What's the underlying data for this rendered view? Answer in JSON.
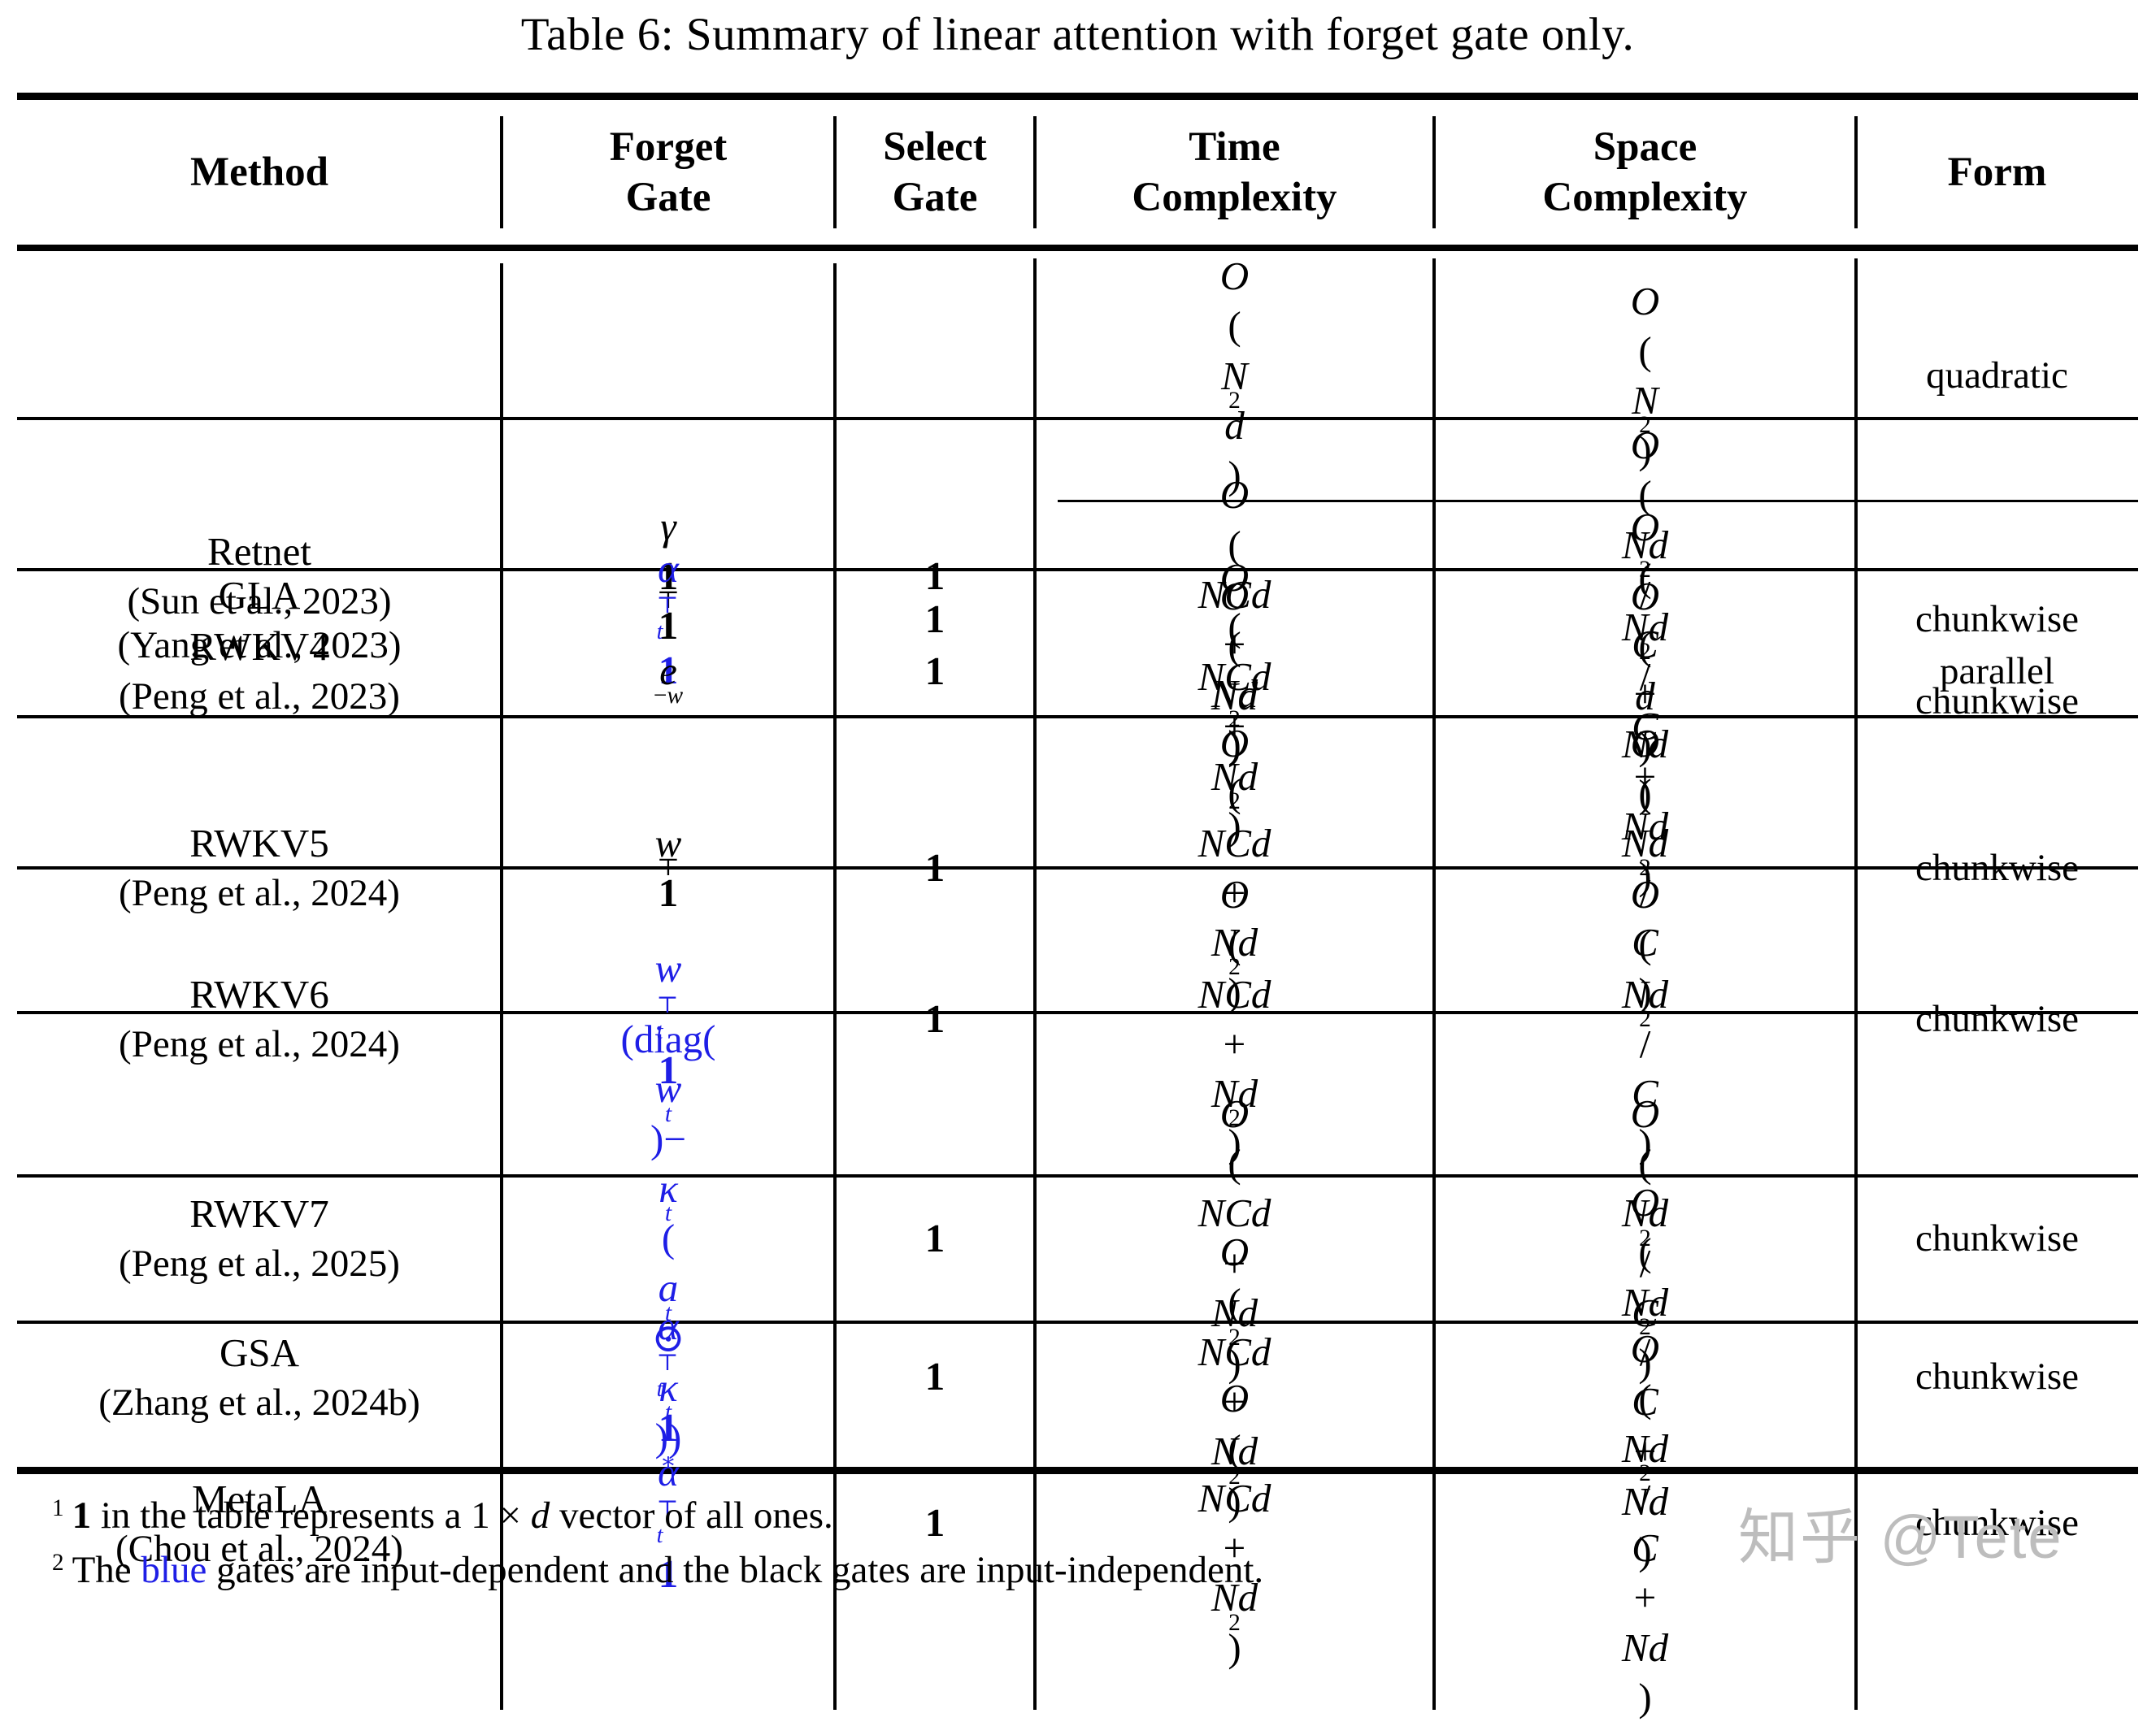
{
  "title": "Table 6: Summary of linear attention with forget gate only.",
  "header": {
    "method": "Method",
    "forget_l1": "Forget",
    "forget_l2": "Gate",
    "select_l1": "Select",
    "select_l2": "Gate",
    "time_l1": "Time",
    "time_l2": "Complexity",
    "space_l1": "Space",
    "space_l2": "Complexity",
    "form": "Form"
  },
  "rows": [
    {
      "name": "Retnet",
      "cite": "(Sun et al., 2023)",
      "gate": "<i>γ</i><b>1</b><sup>⊤</sup><b>1</b>",
      "gate_blue": false,
      "select": "<b>1</b>",
      "sub": [
        {
          "time": "<i>O</i>(<i>N</i><sup>2</sup><i>d</i>)",
          "space": "<i>O</i>(<i>N</i><sup>2</sup>)",
          "form": "quadratic"
        },
        {
          "time": "<i>O</i>(<i>NCd</i> + <i>Nd</i><sup>2</sup>)",
          "space": "<i>O</i>(<i>Nd</i><sup>2</sup>/<i>C</i> + <i>Nd</i>)",
          "form": "chunkwise"
        }
      ]
    },
    {
      "name": "GLA",
      "cite": "(Yang et al., 2023)",
      "gate": "<i>α</i><span class=\"ss\"><span>⊤</span><span><i>t</i></span></span><b>1</b>",
      "gate_blue": true,
      "select": "<b>1</b>",
      "time": "<i>O</i>(<i>NCd</i> + <i>Nd</i><sup>2</sup>)",
      "space": "<i>O</i>(<i>Nd</i><sup>2</sup>/<i>C</i> + <i>Nd</i>)",
      "form": "chunkwise"
    },
    {
      "name": "RWKV4",
      "cite": "(Peng et al., 2023)",
      "gate": "<i>e</i><sup>−<i>w</i></sup>",
      "gate_blue": false,
      "select": "<b>1</b>",
      "time": "<i>O</i>(<i>Nd</i>)",
      "space": "<i>O</i>(<i>d</i>)",
      "form": "parallel"
    },
    {
      "name": "RWKV5",
      "cite": "(Peng et al., 2024)",
      "gate": "<i>w</i><sup>⊤</sup><b>1</b>",
      "gate_blue": false,
      "select": "<b>1</b>",
      "time": "<i>O</i>(<i>NCd</i> + <i>Nd</i><sup>2</sup>)",
      "space": "<i>O</i>(<i>Nd</i><sup>2</sup>/<i>C</i>)",
      "form": "chunkwise"
    },
    {
      "name": "RWKV6",
      "cite": "(Peng et al., 2024)",
      "gate": "<i>w</i><span class=\"ss\"><span>⊤</span><span><i>t</i></span></span><b>1</b>",
      "gate_blue": true,
      "select": "<b>1</b>",
      "time": "<i>O</i>(<i>NCd</i> + <i>Nd</i><sup>2</sup>)",
      "space": "<i>O</i>(<i>Nd</i><sup>2</sup>/<i>C</i>)",
      "form": "chunkwise"
    },
    {
      "name": "RWKV7",
      "cite": "(Peng et al., 2025)",
      "gate": "(diag(<i>w</i><sub><i>t</i></sub>)−<br><i>κ</i><sub><i>t</i></sub>(<i>a</i><sub><i>t</i></sub> ⊙ <i>κ</i><sub><i>t</i></sub>))<sup>∗</sup>",
      "gate_blue": true,
      "select": "<b>1</b>",
      "time": "<i>O</i>(<i>NCd</i> + <i>Nd</i><sup>2</sup>)",
      "space": "<i>O</i>(<i>Nd</i><sup>2</sup>/<i>C</i>)",
      "form": "chunkwise"
    },
    {
      "name": "GSA",
      "cite": "(Zhang et al., 2024b)",
      "gate": "<i>α</i><span class=\"ss\"><span>⊤</span><span><i>t</i></span></span><b>1</b>",
      "gate_blue": true,
      "select": "<b>1</b>",
      "time": "<i>O</i>(<i>NCd</i> + <i>Nd</i><sup>2</sup>)",
      "space": "<i>O</i>(<i>Nd</i><sup>2</sup>/<i>C</i> + <i>Nd</i>)",
      "form": "chunkwise"
    },
    {
      "name": "MetaLA",
      "cite": "(Chou et al., 2024)",
      "gate": "<i>α</i><span class=\"ss\"><span>⊤</span><span><i>t</i></span></span><b>1</b>",
      "gate_blue": true,
      "select": "<b>1</b>",
      "time": "<i>O</i>(<i>NCd</i> + <i>Nd</i><sup>2</sup>)",
      "space": "<i>O</i>(<i>Nd</i><sup>2</sup>/<i>C</i> + <i>Nd</i>)",
      "form": "chunkwise"
    }
  ],
  "footnotes": [
    {
      "marker": "1",
      "html": "<b>1</b> in the table represents a 1 × <i>d</i> vector of all ones."
    },
    {
      "marker": "2",
      "html": "The <span class=\"blue\">blue</span> gates are input-dependent and the black gates are input-independent."
    }
  ],
  "watermark": {
    "text": "知乎 @Tete"
  },
  "colors": {
    "gate_blue": "#1e1ee6",
    "watermark_gray": "#bdbdbd"
  }
}
